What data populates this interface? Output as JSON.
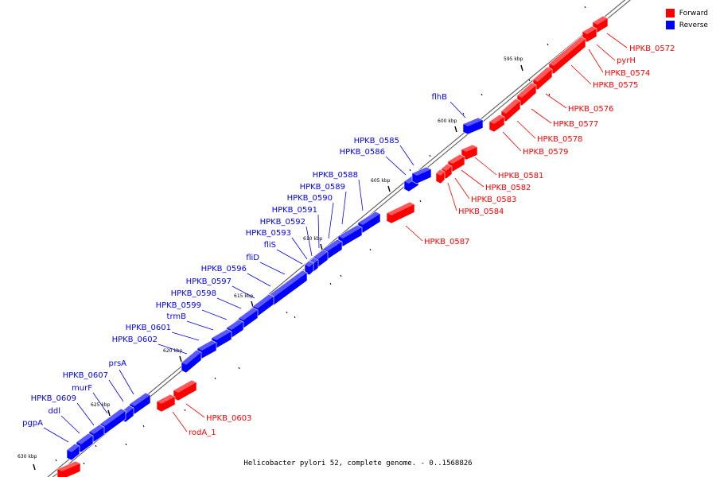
{
  "caption": "Helicobacter pylori 52, complete genome. - 0..1568826",
  "colors": {
    "forward": "#ff0000",
    "reverse": "#0000ff",
    "backbone": "#666666"
  },
  "legend": [
    {
      "label": "Forward",
      "color": "#ff0000"
    },
    {
      "label": "Reverse",
      "color": "#0000ff"
    }
  ],
  "ticks": [
    "595 kbp",
    "600 kbp",
    "605 kbp",
    "610 kbp",
    "615 kbp",
    "620 kbp",
    "625 kbp",
    "630 kbp"
  ],
  "forward_genes": [
    "HPKB_0572",
    "pyrH",
    "HPKB_0574",
    "HPKB_0575",
    "HPKB_0576",
    "HPKB_0577",
    "HPKB_0578",
    "HPKB_0579",
    "HPKB_0581",
    "HPKB_0582",
    "HPKB_0583",
    "HPKB_0584",
    "HPKB_0587",
    "HPKB_0603",
    "rodA_1"
  ],
  "reverse_genes": [
    "flhB",
    "HPKB_0585",
    "HPKB_0586",
    "HPKB_0588",
    "HPKB_0589",
    "HPKB_0590",
    "HPKB_0591",
    "HPKB_0592",
    "HPKB_0593",
    "fliS",
    "fliD",
    "HPKB_0596",
    "HPKB_0597",
    "HPKB_0598",
    "HPKB_0599",
    "trmB",
    "HPKB_0601",
    "HPKB_0602",
    "prsA",
    "HPKB_0607",
    "murF",
    "HPKB_0609",
    "ddl",
    "pgpA"
  ]
}
